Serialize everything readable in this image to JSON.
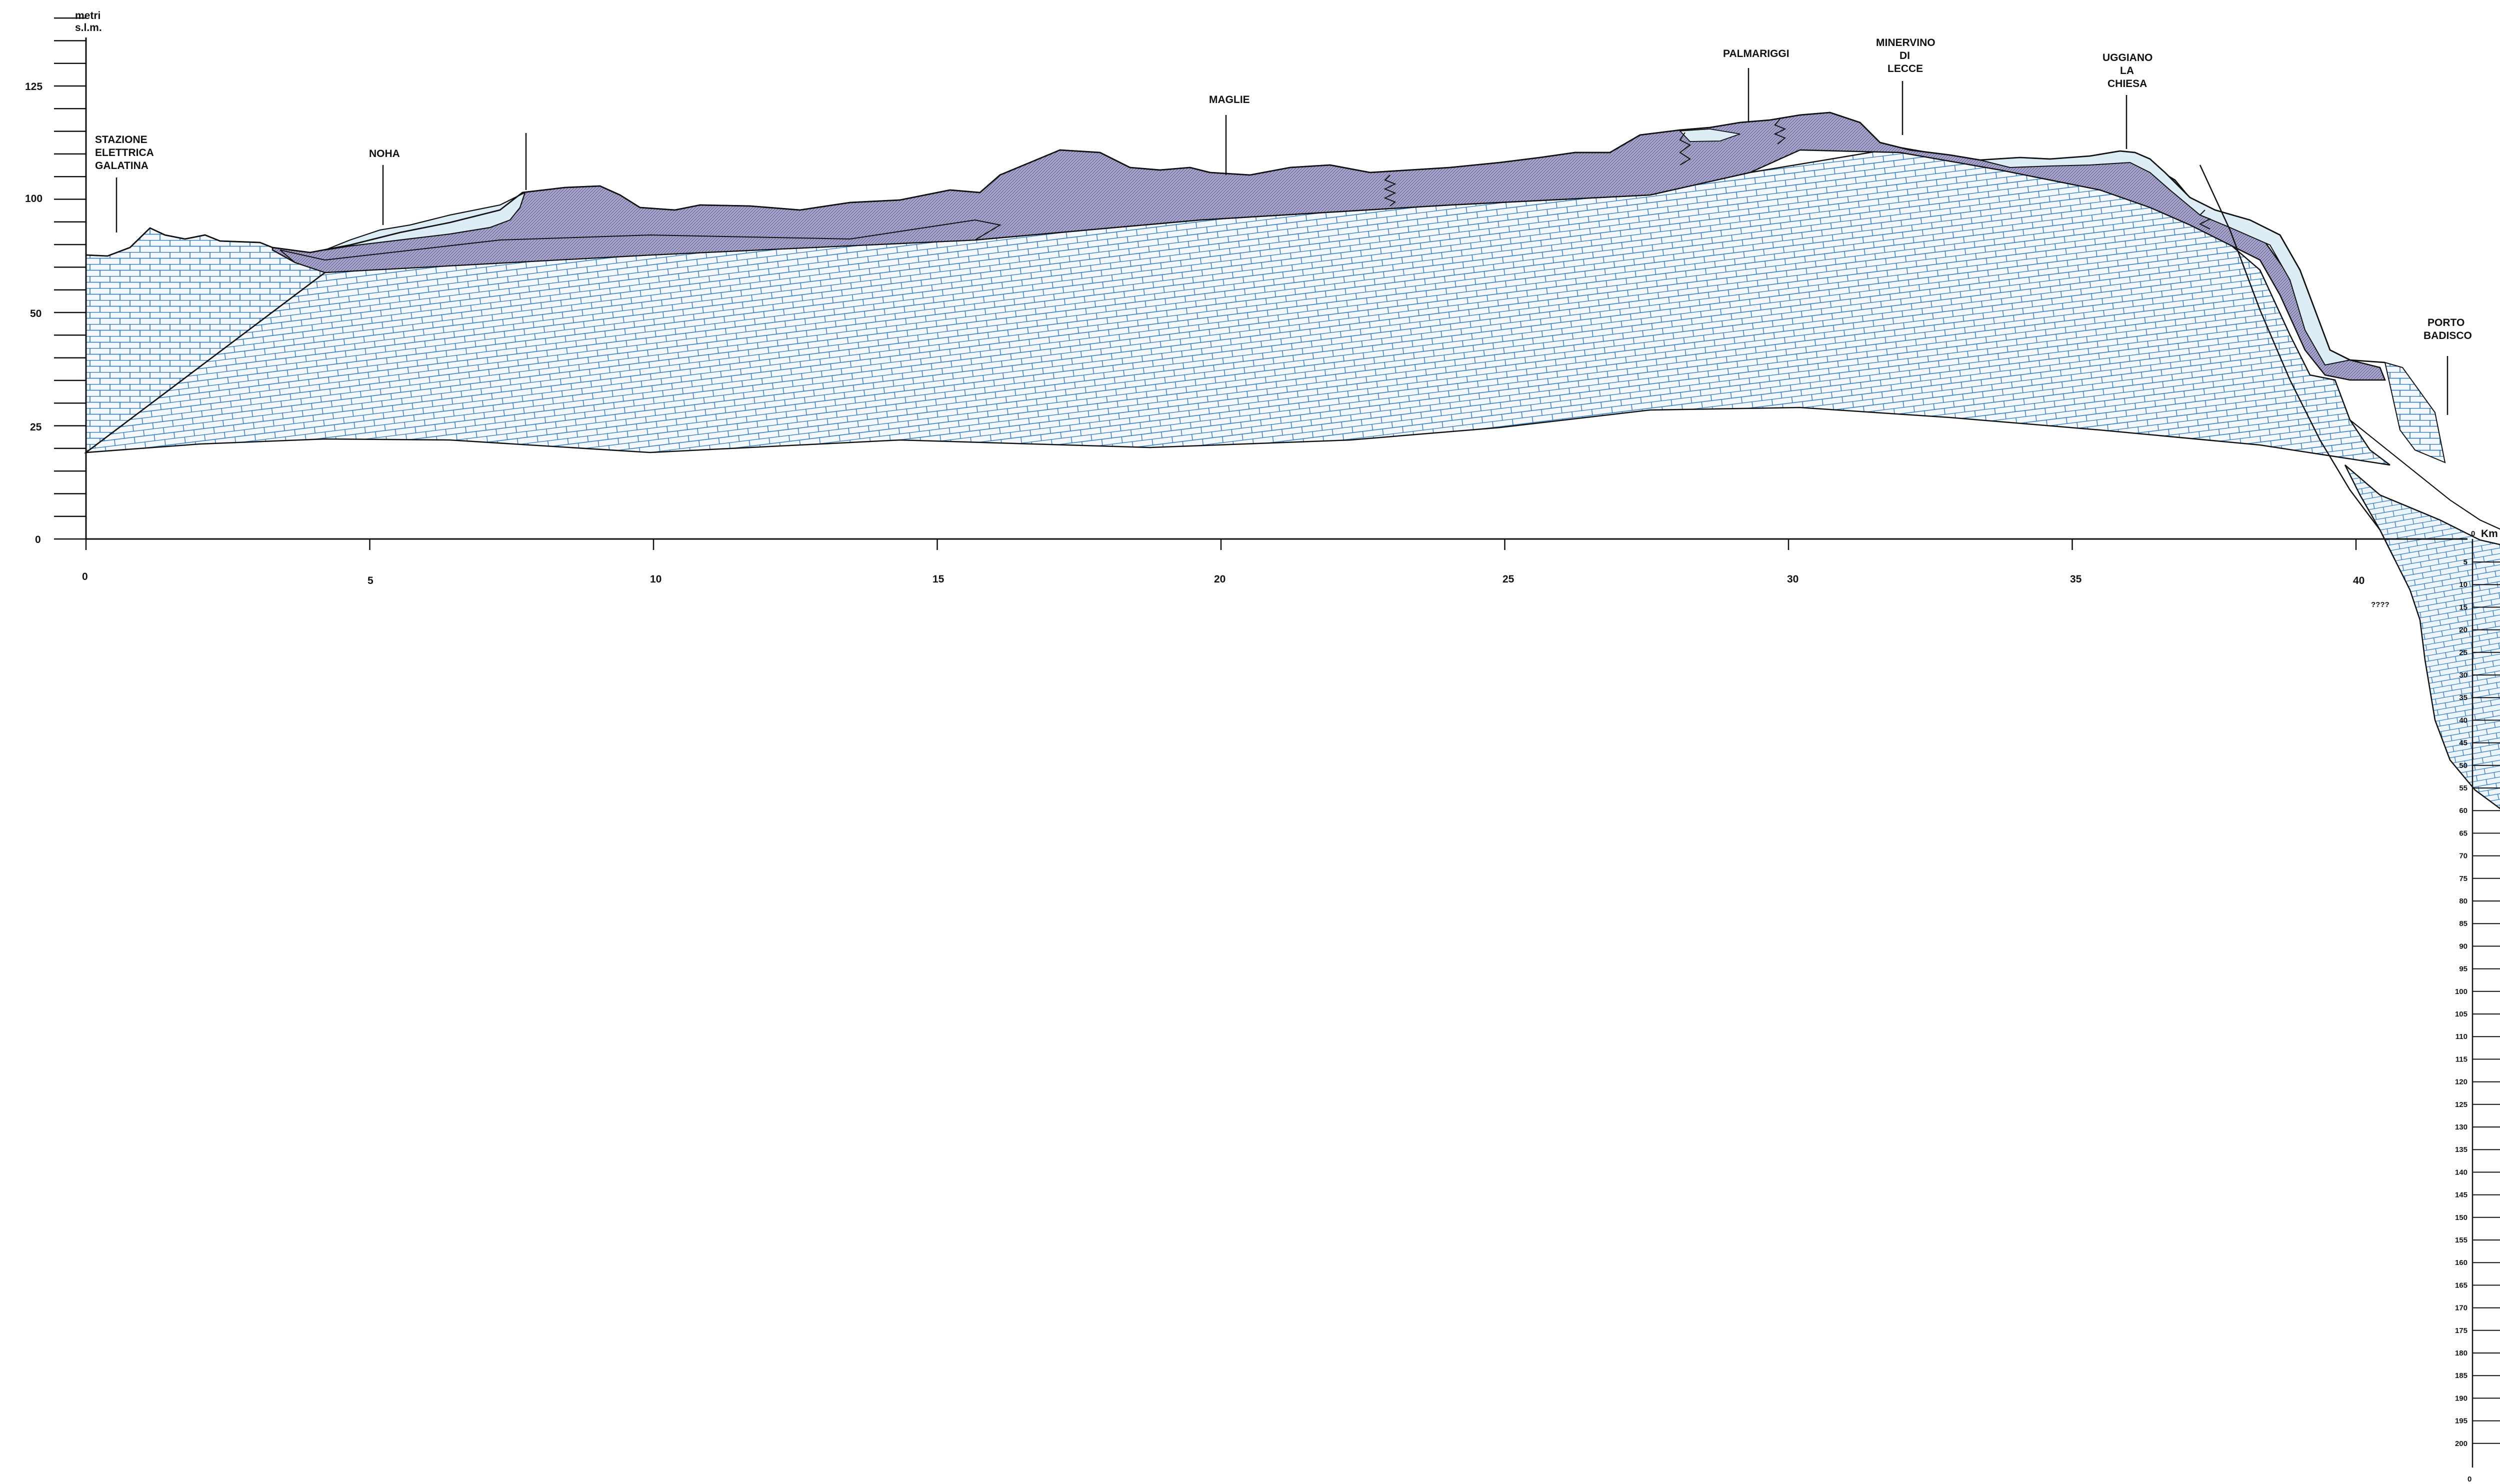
{
  "axes": {
    "y_unit_line1": "metri",
    "y_unit_line2": "s.l.m.",
    "y_labels": [
      "125",
      "100",
      "50",
      "25",
      "0"
    ],
    "x_labels": [
      "0",
      "5",
      "10",
      "15",
      "20",
      "25",
      "30",
      "35",
      "40"
    ],
    "x_unit": "Km",
    "depth_zero": "0",
    "depth_origin": "0",
    "depth_labels": [
      "5",
      "10",
      "15",
      "20",
      "25",
      "30",
      "35",
      "40",
      "45",
      "50",
      "55",
      "60",
      "65",
      "70",
      "75",
      "80",
      "85",
      "90",
      "95",
      "100",
      "105",
      "110",
      "115",
      "120",
      "125",
      "130",
      "135",
      "140",
      "145",
      "150",
      "155",
      "160",
      "165",
      "170",
      "175",
      "180",
      "185",
      "190",
      "195",
      "200"
    ],
    "unknown_mark": "????"
  },
  "places": [
    {
      "lines": [
        "STAZIONE",
        "ELETTRICA",
        "GALATINA"
      ]
    },
    {
      "lines": [
        "NOHA"
      ]
    },
    {
      "lines": [
        "MAGLIE"
      ]
    },
    {
      "lines": [
        "PALMARIGGI"
      ]
    },
    {
      "lines": [
        "MINERVINO",
        "DI",
        "LECCE"
      ]
    },
    {
      "lines": [
        "UGGIANO",
        "LA",
        "CHIESA"
      ]
    },
    {
      "lines": [
        "PORTO",
        "BADISCO"
      ]
    }
  ],
  "colors": {
    "line": "#111111",
    "limestone_fill": "#f2f8fd",
    "limestone_brick": "#2a74b8",
    "calcarenite_fill": "#aaa8cc",
    "calcarenite_hatch": "#5e5a8e",
    "sand_fill": "#dcedf6"
  }
}
